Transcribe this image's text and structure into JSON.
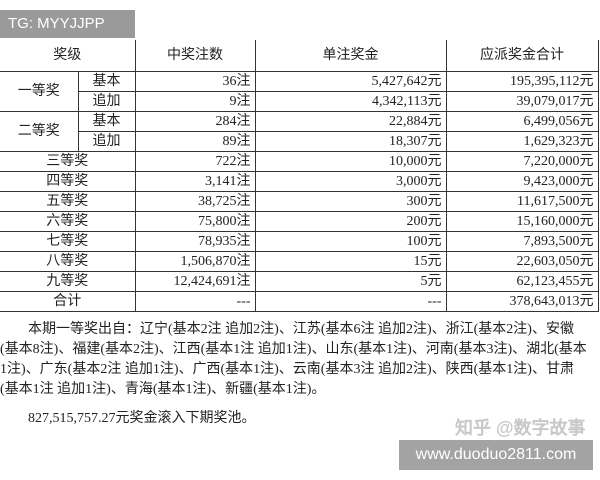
{
  "watermark_top": "TG: MYYJJPP",
  "headers": [
    "奖级",
    "中奖注数",
    "单注奖金",
    "应派奖金合计"
  ],
  "rows": [
    {
      "level": "一等奖",
      "sub": "基本",
      "count": "36注",
      "prize": "5,427,642元",
      "total": "195,395,112元"
    },
    {
      "level": "",
      "sub": "追加",
      "count": "9注",
      "prize": "4,342,113元",
      "total": "39,079,017元"
    },
    {
      "level": "二等奖",
      "sub": "基本",
      "count": "284注",
      "prize": "22,884元",
      "total": "6,499,056元"
    },
    {
      "level": "",
      "sub": "追加",
      "count": "89注",
      "prize": "18,307元",
      "total": "1,629,323元"
    },
    {
      "level": "三等奖",
      "count": "722注",
      "prize": "10,000元",
      "total": "7,220,000元"
    },
    {
      "level": "四等奖",
      "count": "3,141注",
      "prize": "3,000元",
      "total": "9,423,000元"
    },
    {
      "level": "五等奖",
      "count": "38,725注",
      "prize": "300元",
      "total": "11,617,500元"
    },
    {
      "level": "六等奖",
      "count": "75,800注",
      "prize": "200元",
      "total": "15,160,000元"
    },
    {
      "level": "七等奖",
      "count": "78,935注",
      "prize": "100元",
      "total": "7,893,500元"
    },
    {
      "level": "八等奖",
      "count": "1,506,870注",
      "prize": "15元",
      "total": "22,603,050元"
    },
    {
      "level": "九等奖",
      "count": "12,424,691注",
      "prize": "5元",
      "total": "62,123,455元"
    },
    {
      "level": "合计",
      "count": "---",
      "prize": "---",
      "total": "378,643,013元"
    }
  ],
  "first_prize_origin": "本期一等奖出自：辽宁(基本2注 追加2注)、江苏(基本6注 追加2注)、浙江(基本2注)、安徽(基本8注)、福建(基本2注)、江西(基本1注 追加1注)、山东(基本1注)、河南(基本3注)、湖北(基本1注)、广东(基本2注 追加1注)、广西(基本1注)、云南(基本3注 追加2注)、陕西(基本1注)、甘肃(基本1注 追加1注)、青海(基本1注)、新疆(基本1注)。",
  "rollover": "827,515,757.27元奖金滚入下期奖池。",
  "watermark_zhihu": "知乎 @数字故事",
  "watermark_site": "www.duoduo2811.com"
}
